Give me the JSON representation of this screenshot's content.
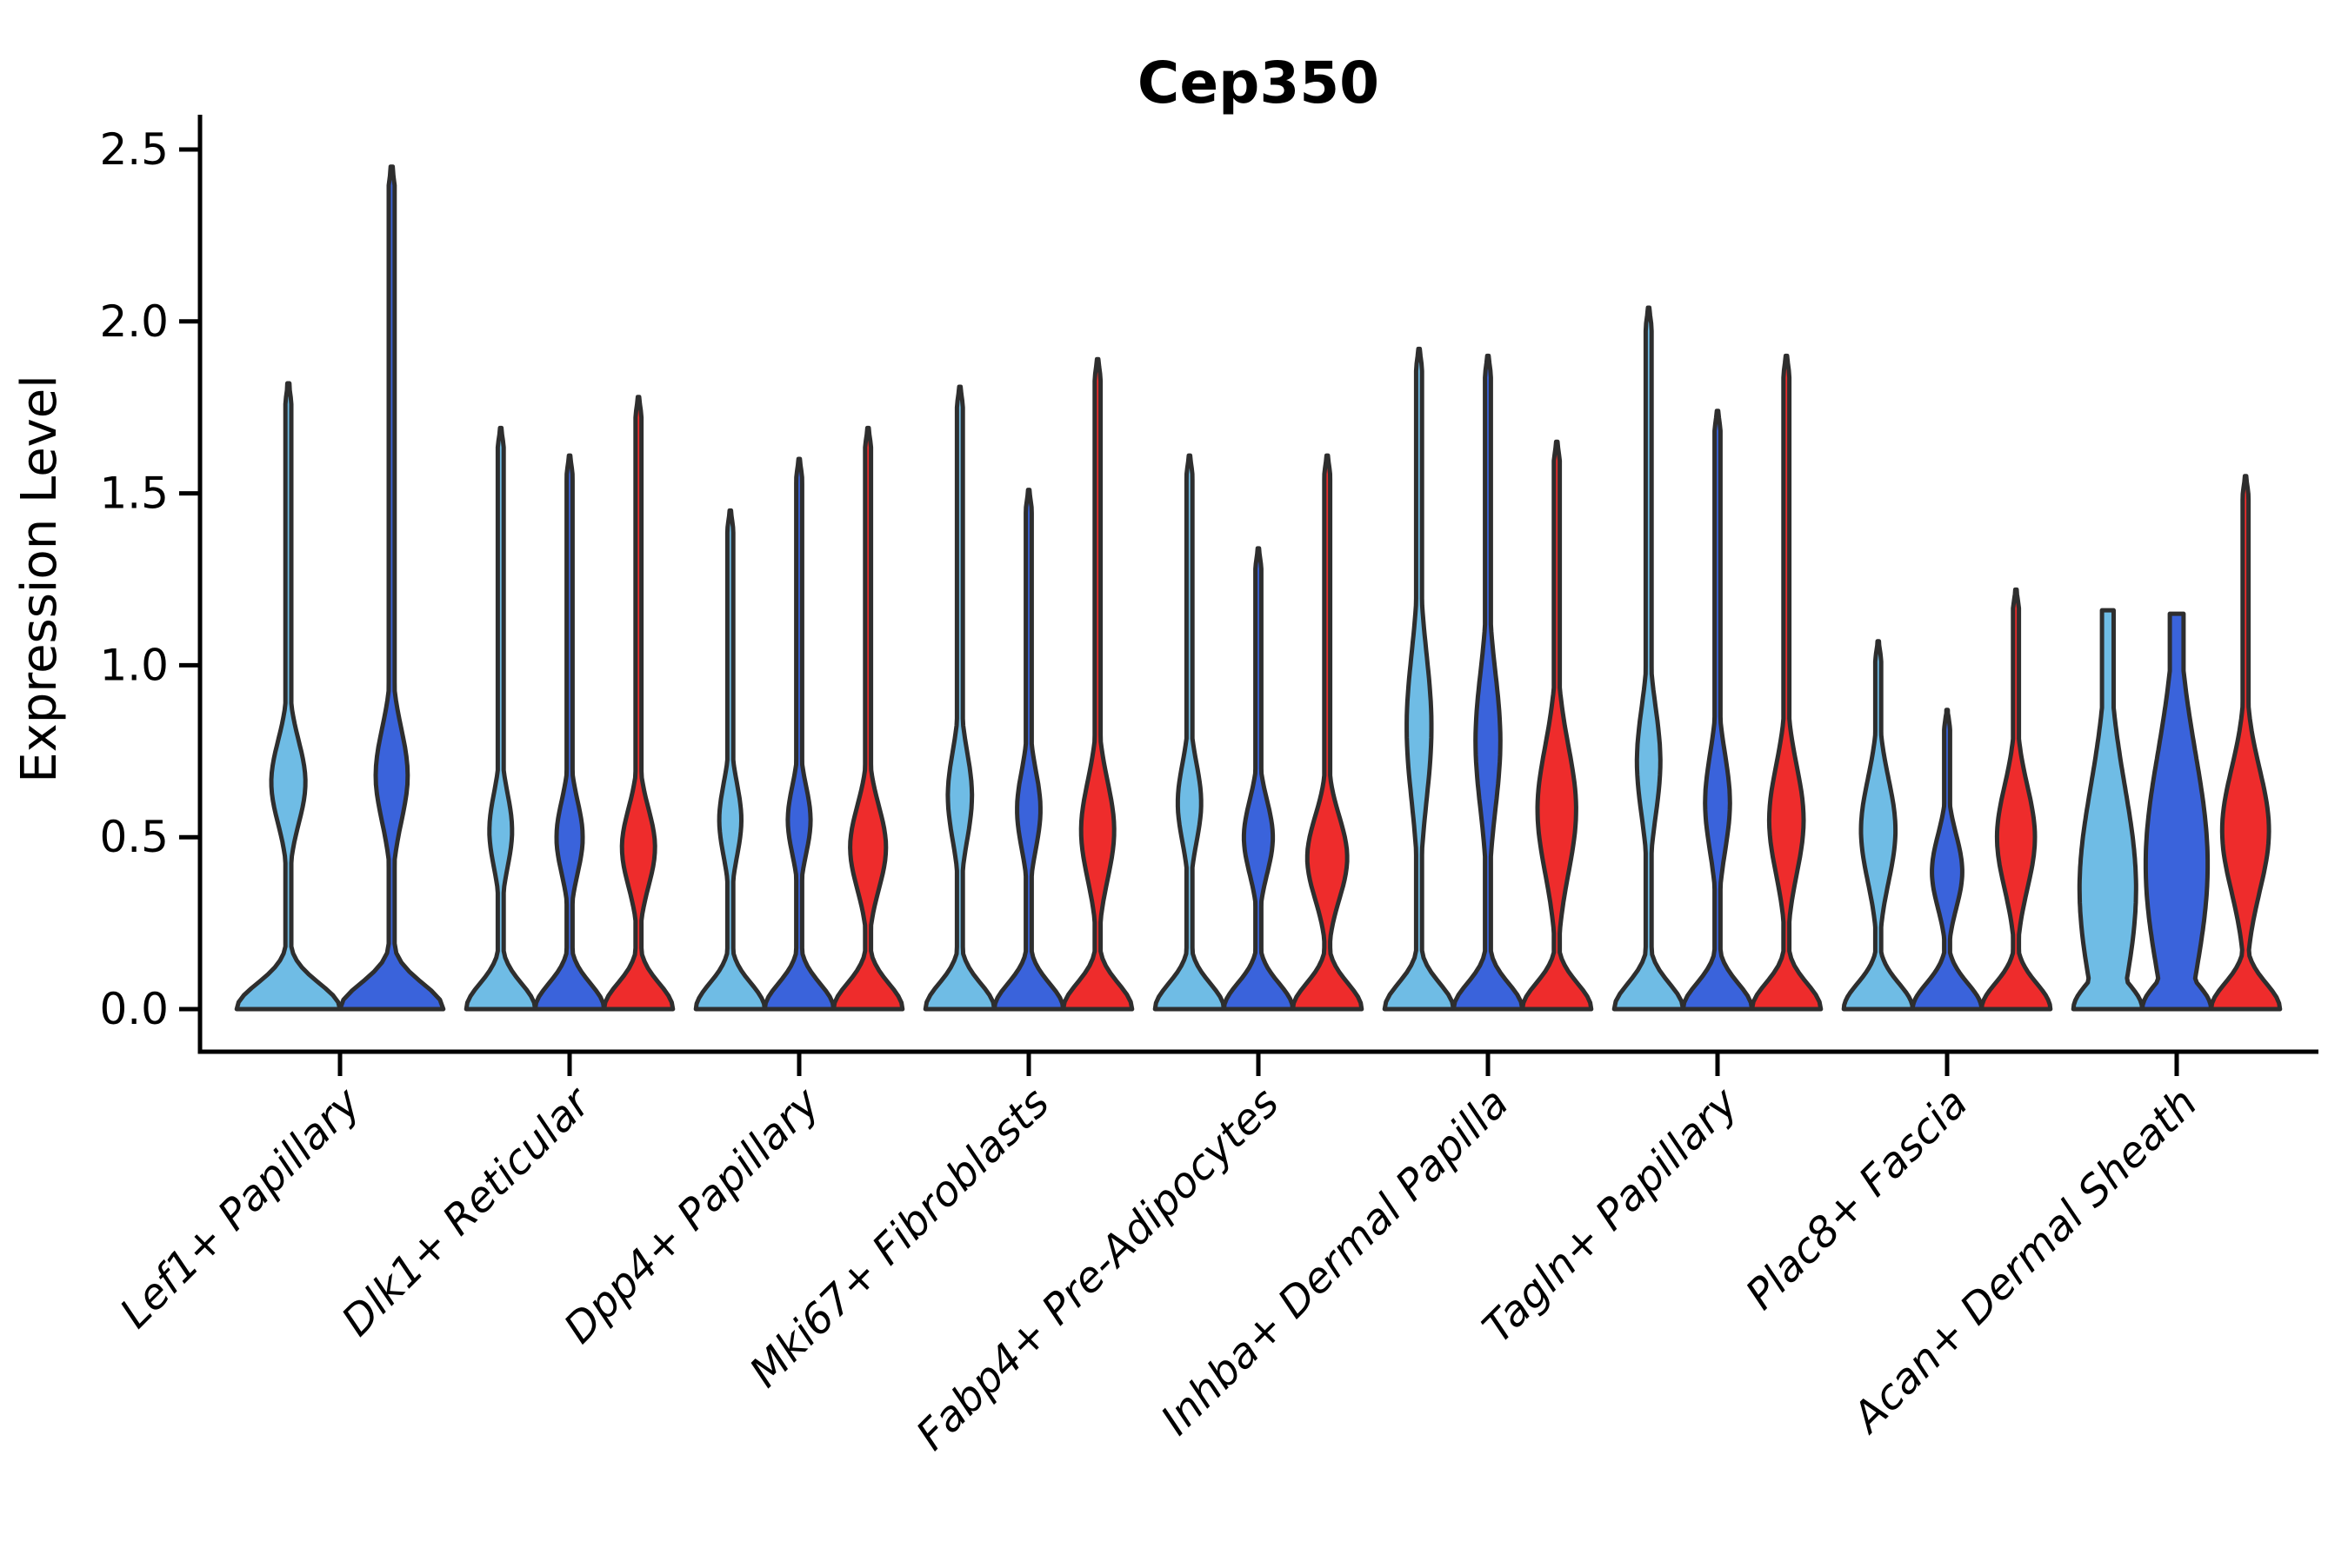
{
  "title": "Cep350",
  "ylabel": "Expression Level",
  "colors": {
    "light_blue": "#6FBCE5",
    "dark_blue": "#3A63DB",
    "red": "#EE2C2C",
    "outline": "#2E2E2E",
    "axis": "#000000",
    "background": "#FFFFFF"
  },
  "chart_data": {
    "type": "violin",
    "title": "Cep350",
    "xlabel": "",
    "ylabel": "Expression Level",
    "ylim": [
      0,
      2.6
    ],
    "yticks": [
      "0.0",
      "0.5",
      "1.0",
      "1.5",
      "2.0",
      "2.5"
    ],
    "ytick_values": [
      0.0,
      0.5,
      1.0,
      1.5,
      2.0,
      2.5
    ],
    "grid": "off",
    "legend": "none",
    "split_order": [
      "light_blue",
      "dark_blue",
      "red"
    ],
    "categories": [
      "Lef1+ Papillary",
      "Dlk1+ Reticular",
      "Dpp4+ Papillary",
      "Mki67+ Fibroblasts",
      "Fabp4+ Pre-Adipocytes",
      "Inhba+ Dermal Papilla",
      "Tagln+ Papillary",
      "Plac8+ Fascia",
      "Acan+ Dermal Sheath"
    ],
    "groups": [
      {
        "label": "Lef1+ Papillary",
        "violins": [
          {
            "split": "light_blue",
            "max_expression": 1.82,
            "bulge_center": 0.66,
            "bulge_sigma": 0.17,
            "bulge_amp": 0.33
          },
          {
            "split": "dark_blue",
            "max_expression": 2.45,
            "bulge_center": 0.68,
            "bulge_sigma": 0.19,
            "bulge_amp": 0.31
          }
        ]
      },
      {
        "label": "Dlk1+ Reticular",
        "violins": [
          {
            "split": "light_blue",
            "max_expression": 1.69,
            "bulge_center": 0.52,
            "bulge_sigma": 0.15,
            "bulge_amp": 0.33
          },
          {
            "split": "dark_blue",
            "max_expression": 1.61,
            "bulge_center": 0.5,
            "bulge_sigma": 0.15,
            "bulge_amp": 0.38
          },
          {
            "split": "red",
            "max_expression": 1.78,
            "bulge_center": 0.47,
            "bulge_sigma": 0.16,
            "bulge_amp": 0.48
          }
        ]
      },
      {
        "label": "Dpp4+ Papillary",
        "violins": [
          {
            "split": "light_blue",
            "max_expression": 1.45,
            "bulge_center": 0.55,
            "bulge_sigma": 0.15,
            "bulge_amp": 0.32
          },
          {
            "split": "dark_blue",
            "max_expression": 1.6,
            "bulge_center": 0.55,
            "bulge_sigma": 0.14,
            "bulge_amp": 0.33
          },
          {
            "split": "red",
            "max_expression": 1.69,
            "bulge_center": 0.47,
            "bulge_sigma": 0.17,
            "bulge_amp": 0.52
          }
        ]
      },
      {
        "label": "Mki67+ Fibroblasts",
        "violins": [
          {
            "split": "light_blue",
            "max_expression": 1.81,
            "bulge_center": 0.62,
            "bulge_sigma": 0.18,
            "bulge_amp": 0.35
          },
          {
            "split": "dark_blue",
            "max_expression": 1.51,
            "bulge_center": 0.58,
            "bulge_sigma": 0.16,
            "bulge_amp": 0.34
          },
          {
            "split": "red",
            "max_expression": 1.89,
            "bulge_center": 0.52,
            "bulge_sigma": 0.2,
            "bulge_amp": 0.48
          }
        ]
      },
      {
        "label": "Fabp4+ Pre-Adipocytes",
        "violins": [
          {
            "split": "light_blue",
            "max_expression": 1.61,
            "bulge_center": 0.6,
            "bulge_sigma": 0.16,
            "bulge_amp": 0.34
          },
          {
            "split": "dark_blue",
            "max_expression": 1.34,
            "bulge_center": 0.5,
            "bulge_sigma": 0.15,
            "bulge_amp": 0.42
          },
          {
            "split": "red",
            "max_expression": 1.61,
            "bulge_center": 0.44,
            "bulge_sigma": 0.17,
            "bulge_amp": 0.58
          }
        ]
      },
      {
        "label": "Inhba+ Dermal Papilla",
        "violins": [
          {
            "split": "light_blue",
            "max_expression": 1.92,
            "bulge_center": 0.82,
            "bulge_sigma": 0.3,
            "bulge_amp": 0.36
          },
          {
            "split": "dark_blue",
            "max_expression": 1.9,
            "bulge_center": 0.78,
            "bulge_sigma": 0.28,
            "bulge_amp": 0.36
          },
          {
            "split": "red",
            "max_expression": 1.65,
            "bulge_center": 0.58,
            "bulge_sigma": 0.26,
            "bulge_amp": 0.56
          }
        ]
      },
      {
        "label": "Tagln+ Papillary",
        "violins": [
          {
            "split": "light_blue",
            "max_expression": 2.04,
            "bulge_center": 0.72,
            "bulge_sigma": 0.22,
            "bulge_amp": 0.34
          },
          {
            "split": "dark_blue",
            "max_expression": 1.74,
            "bulge_center": 0.6,
            "bulge_sigma": 0.2,
            "bulge_amp": 0.36
          },
          {
            "split": "red",
            "max_expression": 1.9,
            "bulge_center": 0.55,
            "bulge_sigma": 0.22,
            "bulge_amp": 0.5
          }
        ]
      },
      {
        "label": "Plac8+ Fascia",
        "violins": [
          {
            "split": "light_blue",
            "max_expression": 1.07,
            "bulge_center": 0.52,
            "bulge_sigma": 0.21,
            "bulge_amp": 0.5
          },
          {
            "split": "dark_blue",
            "max_expression": 0.87,
            "bulge_center": 0.4,
            "bulge_sigma": 0.15,
            "bulge_amp": 0.44
          },
          {
            "split": "red",
            "max_expression": 1.22,
            "bulge_center": 0.5,
            "bulge_sigma": 0.21,
            "bulge_amp": 0.55
          }
        ]
      },
      {
        "label": "Acan+ Dermal Sheath",
        "violins": [
          {
            "split": "light_blue",
            "max_expression": 1.16,
            "bulge_center": 0.35,
            "bulge_sigma": 0.42,
            "bulge_amp": 0.82,
            "cap": "flat",
            "stem": 0.17
          },
          {
            "split": "dark_blue",
            "max_expression": 1.15,
            "bulge_center": 0.42,
            "bulge_sigma": 0.46,
            "bulge_amp": 0.9,
            "cap": "flat",
            "stem": 0.2
          },
          {
            "split": "red",
            "max_expression": 1.55,
            "bulge_center": 0.52,
            "bulge_sigma": 0.25,
            "bulge_amp": 0.68
          }
        ]
      }
    ]
  }
}
